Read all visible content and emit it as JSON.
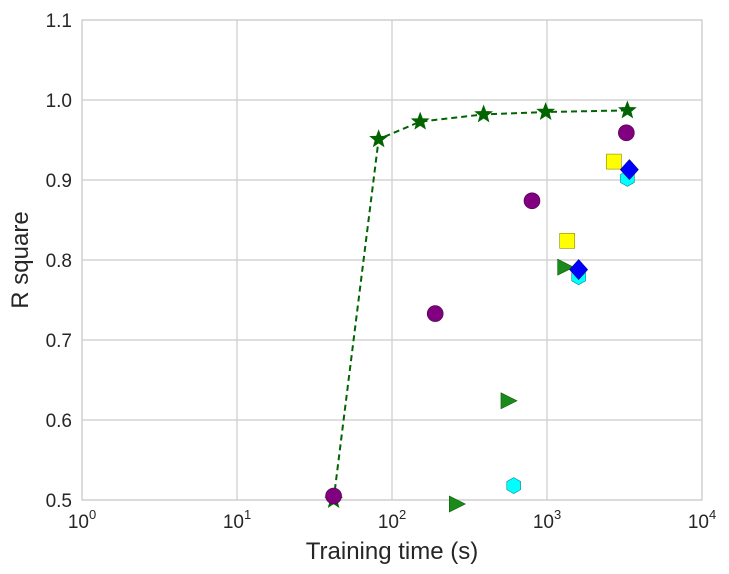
{
  "chart_data": {
    "type": "scatter",
    "title": "",
    "xlabel": "Training time (s)",
    "ylabel": "R square",
    "xscale": "log",
    "xlim": [
      1,
      10000
    ],
    "ylim": [
      0.5,
      1.1
    ],
    "grid": true,
    "legend": "none",
    "x_ticks": [
      {
        "value": 1,
        "base": "10",
        "exp": "0"
      },
      {
        "value": 10,
        "base": "10",
        "exp": "1"
      },
      {
        "value": 100,
        "base": "10",
        "exp": "2"
      },
      {
        "value": 1000,
        "base": "10",
        "exp": "3"
      },
      {
        "value": 10000,
        "base": "10",
        "exp": "4"
      }
    ],
    "y_ticks": [
      {
        "value": 0.5,
        "label": "0.5"
      },
      {
        "value": 0.6,
        "label": "0.6"
      },
      {
        "value": 0.7,
        "label": "0.7"
      },
      {
        "value": 0.8,
        "label": "0.8"
      },
      {
        "value": 0.9,
        "label": "0.9"
      },
      {
        "value": 1.0,
        "label": "1.0"
      },
      {
        "value": 1.1,
        "label": "1.1"
      }
    ],
    "series": [
      {
        "marker": "star",
        "color": "#006400",
        "line": "dashed",
        "points": [
          [
            42,
            0.5
          ],
          [
            82,
            0.951
          ],
          [
            152,
            0.973
          ],
          [
            390,
            0.982
          ],
          [
            980,
            0.985
          ],
          [
            3300,
            0.987
          ]
        ]
      },
      {
        "marker": "circle",
        "color": "#800080",
        "points": [
          [
            42,
            0.505
          ],
          [
            190,
            0.733
          ],
          [
            800,
            0.874
          ],
          [
            3250,
            0.959
          ]
        ]
      },
      {
        "marker": "triangle-right",
        "color": "#1a8a1a",
        "points": [
          [
            260,
            0.495
          ],
          [
            560,
            0.624
          ],
          [
            1300,
            0.791
          ]
        ]
      },
      {
        "marker": "hexagon",
        "color": "#00ffff",
        "points": [
          [
            610,
            0.518
          ],
          [
            1600,
            0.779
          ],
          [
            3300,
            0.902
          ]
        ]
      },
      {
        "marker": "square",
        "color": "#ffff00",
        "points": [
          [
            1350,
            0.824
          ],
          [
            2700,
            0.923
          ]
        ]
      },
      {
        "marker": "diamond",
        "color": "#0000ff",
        "points": [
          [
            1600,
            0.788
          ],
          [
            3400,
            0.913
          ]
        ]
      }
    ]
  }
}
